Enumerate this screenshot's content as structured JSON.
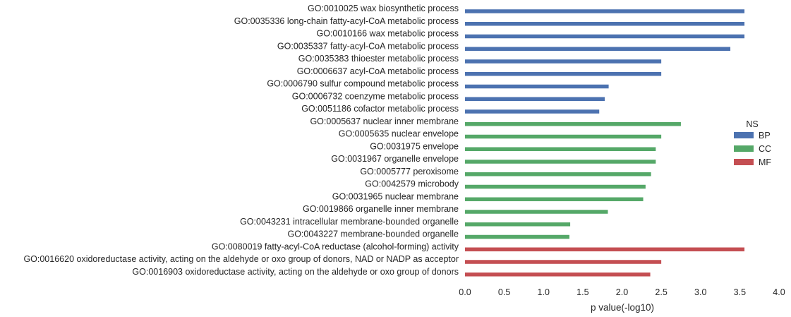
{
  "chart_data": {
    "type": "bar",
    "orientation": "horizontal",
    "xlabel": "p value(-log10)",
    "xlim": [
      0.0,
      4.0
    ],
    "xticks": [
      "0.0",
      "0.5",
      "1.0",
      "1.5",
      "2.0",
      "2.5",
      "3.0",
      "3.5",
      "4.0"
    ],
    "legend": {
      "title": "NS",
      "placement": "right",
      "entries": [
        {
          "name": "BP",
          "color": "#4c72b0"
        },
        {
          "name": "CC",
          "color": "#55a868"
        },
        {
          "name": "MF",
          "color": "#c44e52"
        }
      ]
    },
    "categories": [
      {
        "label": "GO:0010025 wax biosynthetic process",
        "value": 3.56,
        "ns": "BP"
      },
      {
        "label": "GO:0035336 long-chain fatty-acyl-CoA metabolic process",
        "value": 3.56,
        "ns": "BP"
      },
      {
        "label": "GO:0010166 wax metabolic process",
        "value": 3.56,
        "ns": "BP"
      },
      {
        "label": "GO:0035337 fatty-acyl-CoA metabolic process",
        "value": 3.38,
        "ns": "BP"
      },
      {
        "label": "GO:0035383 thioester metabolic process",
        "value": 2.5,
        "ns": "BP"
      },
      {
        "label": "GO:0006637 acyl-CoA metabolic process",
        "value": 2.5,
        "ns": "BP"
      },
      {
        "label": "GO:0006790 sulfur compound metabolic process",
        "value": 1.83,
        "ns": "BP"
      },
      {
        "label": "GO:0006732 coenzyme metabolic process",
        "value": 1.78,
        "ns": "BP"
      },
      {
        "label": "GO:0051186 cofactor metabolic process",
        "value": 1.71,
        "ns": "BP"
      },
      {
        "label": "GO:0005637 nuclear inner membrane",
        "value": 2.75,
        "ns": "CC"
      },
      {
        "label": "GO:0005635 nuclear envelope",
        "value": 2.5,
        "ns": "CC"
      },
      {
        "label": "GO:0031975 envelope",
        "value": 2.43,
        "ns": "CC"
      },
      {
        "label": "GO:0031967 organelle envelope",
        "value": 2.43,
        "ns": "CC"
      },
      {
        "label": "GO:0005777 peroxisome",
        "value": 2.37,
        "ns": "CC"
      },
      {
        "label": "GO:0042579 microbody",
        "value": 2.3,
        "ns": "CC"
      },
      {
        "label": "GO:0031965 nuclear membrane",
        "value": 2.27,
        "ns": "CC"
      },
      {
        "label": "GO:0019866 organelle inner membrane",
        "value": 1.82,
        "ns": "CC"
      },
      {
        "label": "GO:0043231 intracellular membrane-bounded organelle",
        "value": 1.34,
        "ns": "CC"
      },
      {
        "label": "GO:0043227 membrane-bounded organelle",
        "value": 1.33,
        "ns": "CC"
      },
      {
        "label": "GO:0080019 fatty-acyl-CoA reductase (alcohol-forming) activity",
        "value": 3.56,
        "ns": "MF"
      },
      {
        "label": "GO:0016620 oxidoreductase activity, acting on the aldehyde or oxo group of donors, NAD or NADP as acceptor",
        "value": 2.5,
        "ns": "MF"
      },
      {
        "label": "GO:0016903 oxidoreductase activity, acting on the aldehyde or oxo group of donors",
        "value": 2.36,
        "ns": "MF"
      }
    ]
  }
}
